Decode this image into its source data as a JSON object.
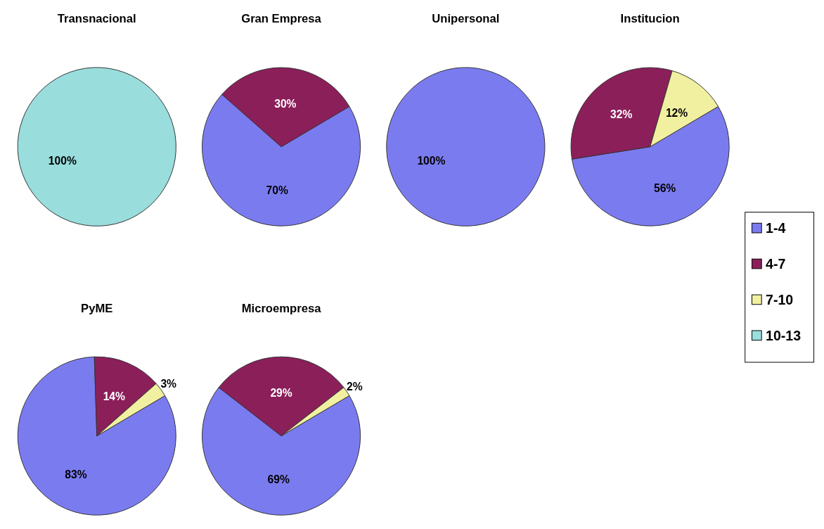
{
  "chart_data": [
    {
      "type": "pie",
      "title": "Transnacional",
      "categories": [
        null,
        null,
        null,
        null
      ],
      "values": [
        0,
        0,
        0,
        100
      ],
      "colors": [
        "#7b7bf0",
        "#8b1f5a",
        "#f0f0a0",
        "#99dddd"
      ],
      "value_labels": [
        null,
        null,
        null,
        "100%"
      ]
    },
    {
      "type": "pie",
      "title": "Gran Empresa",
      "categories": [
        null,
        null,
        null,
        null
      ],
      "values": [
        70,
        30,
        0,
        0
      ],
      "colors": [
        "#7b7bf0",
        "#8b1f5a",
        "#f0f0a0",
        "#99dddd"
      ],
      "value_labels": [
        "70%",
        "30%",
        null,
        null
      ]
    },
    {
      "type": "pie",
      "title": "Unipersonal",
      "categories": [
        null,
        null,
        null,
        null
      ],
      "values": [
        100,
        0,
        0,
        0
      ],
      "colors": [
        "#7b7bf0",
        "#8b1f5a",
        "#f0f0a0",
        "#99dddd"
      ],
      "value_labels": [
        "100%",
        null,
        null,
        null
      ]
    },
    {
      "type": "pie",
      "title": "Institucion",
      "categories": [
        "1-4",
        "4-7",
        "7-10",
        "10-13"
      ],
      "values": [
        56,
        32,
        12,
        0
      ],
      "colors": [
        "#7b7bf0",
        "#8b1f5a",
        "#f0f0a0",
        "#99dddd"
      ],
      "value_labels": [
        "56%",
        "32%",
        "12%",
        null
      ],
      "legend": "right"
    },
    {
      "type": "pie",
      "title": "PyME",
      "categories": [
        null,
        null,
        null,
        null
      ],
      "values": [
        83,
        14,
        3,
        0
      ],
      "colors": [
        "#7b7bf0",
        "#8b1f5a",
        "#f0f0a0",
        "#99dddd"
      ],
      "value_labels": [
        "83%",
        "14%",
        "3%",
        null
      ]
    },
    {
      "type": "pie",
      "title": "Microempresa",
      "categories": [
        null,
        null,
        null,
        null
      ],
      "values": [
        69,
        29,
        2,
        0
      ],
      "colors": [
        "#7b7bf0",
        "#8b1f5a",
        "#f0f0a0",
        "#99dddd"
      ],
      "value_labels": [
        "69%",
        "29%",
        "2%",
        null
      ]
    }
  ]
}
